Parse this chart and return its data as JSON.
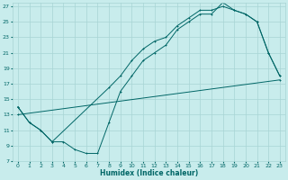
{
  "xlabel": "Humidex (Indice chaleur)",
  "xlim": [
    -0.5,
    23.5
  ],
  "ylim": [
    7,
    27.5
  ],
  "xticks": [
    0,
    1,
    2,
    3,
    4,
    5,
    6,
    7,
    8,
    9,
    10,
    11,
    12,
    13,
    14,
    15,
    16,
    17,
    18,
    19,
    20,
    21,
    22,
    23
  ],
  "yticks": [
    7,
    9,
    11,
    13,
    15,
    17,
    19,
    21,
    23,
    25,
    27
  ],
  "line_color": "#006666",
  "bg_color": "#c8ecec",
  "grid_color": "#a8d4d4",
  "line1_x": [
    0,
    1,
    2,
    3,
    4,
    5,
    6,
    7,
    8,
    9,
    10,
    11,
    12,
    13,
    14,
    15,
    16,
    17,
    18,
    19,
    20,
    21,
    22,
    23
  ],
  "line1_y": [
    14,
    12,
    11,
    9.5,
    9.5,
    8.5,
    8,
    8,
    12,
    16,
    18,
    20,
    21,
    22,
    24,
    25,
    26,
    26,
    27.5,
    26.5,
    26,
    25,
    21,
    18
  ],
  "line2_x": [
    0,
    1,
    2,
    3,
    8,
    9,
    10,
    11,
    12,
    13,
    14,
    15,
    16,
    17,
    18,
    19,
    20,
    21,
    22,
    23
  ],
  "line2_y": [
    14,
    12,
    11,
    9.5,
    16.5,
    18,
    20,
    21.5,
    22.5,
    23,
    24.5,
    25.5,
    26.5,
    26.5,
    27,
    26.5,
    26,
    25,
    21,
    18
  ],
  "line3_x": [
    0,
    23
  ],
  "line3_y": [
    13,
    17.5
  ],
  "markersize": 2.0
}
